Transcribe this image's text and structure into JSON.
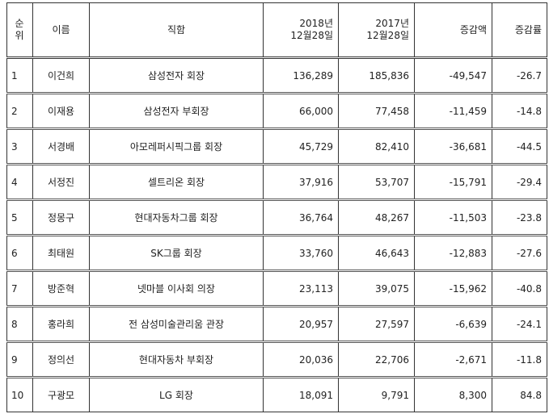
{
  "table": {
    "header": [
      "순\n위",
      "이름",
      "직함",
      "2018년\n12월28일",
      "2017년\n12월28일",
      "증감액",
      "증감률"
    ],
    "rows": [
      [
        "1",
        "이건희",
        "삼성전자 회장",
        "136,289",
        "185,836",
        "-49,547",
        "-26.7"
      ],
      [
        "2",
        "이재용",
        "삼성전자 부회장",
        "66,000",
        "77,458",
        "-11,459",
        "-14.8"
      ],
      [
        "3",
        "서경배",
        "아모레퍼시픽그룹 회장",
        "45,729",
        "82,410",
        "-36,681",
        "-44.5"
      ],
      [
        "4",
        "서정진",
        "셀트리온 회장",
        "37,916",
        "53,707",
        "-15,791",
        "-29.4"
      ],
      [
        "5",
        "정몽구",
        "현대자동차그룹 회장",
        "36,764",
        "48,267",
        "-11,503",
        "-23.8"
      ],
      [
        "6",
        "최태원",
        "SK그룹 회장",
        "33,760",
        "46,643",
        "-12,883",
        "-27.6"
      ],
      [
        "7",
        "방준혁",
        "넷마블 이사회 의장",
        "23,113",
        "39,075",
        "-15,962",
        "-40.8"
      ],
      [
        "8",
        "홍라희",
        "전 삼성미술관리움 관장",
        "20,957",
        "27,597",
        "-6,639",
        "-24.1"
      ],
      [
        "9",
        "정의선",
        "현대자동차 부회장",
        "20,036",
        "22,706",
        "-2,671",
        "-11.8"
      ],
      [
        "10",
        "구광모",
        "LG 회장",
        "18,091",
        "9,791",
        "8,300",
        "84.8"
      ]
    ]
  }
}
